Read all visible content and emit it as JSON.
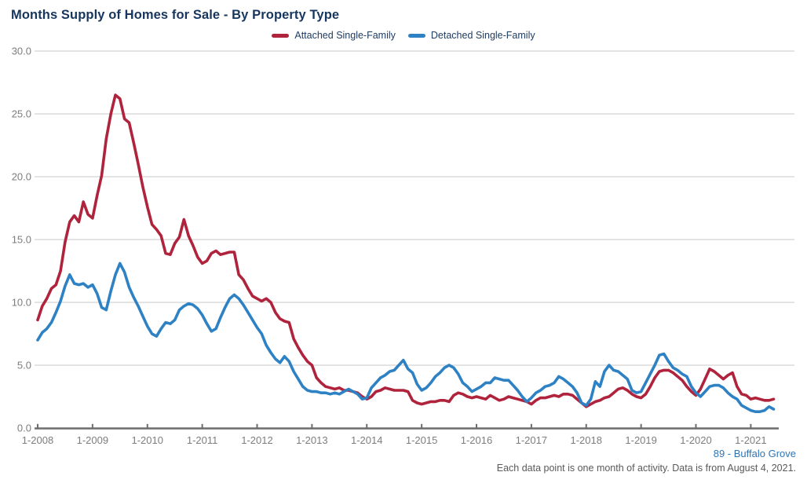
{
  "title": "Months Supply of Homes for Sale - By Property Type",
  "footer": {
    "report_label": "89 - Buffalo Grove",
    "note": "Each data point is one month of activity. Data is from August 4, 2021."
  },
  "colors": {
    "title_text": "#17365d",
    "legend_text": "#1f3c61",
    "axis_label": "#7d7d7d",
    "gridline": "#c9c9c9",
    "axis_line": "#6d6d6d",
    "attached_red": "#b0233c",
    "detached_blue": "#2e82c4",
    "footer_link_blue": "#2e75b6",
    "footer_note_gray": "#595959"
  },
  "chart_data": {
    "type": "line",
    "title": "Months Supply of Homes for Sale - By Property Type",
    "x_frequency": "monthly",
    "x_start": "1-2008",
    "x_end": "6-2021",
    "x_tick_labels": [
      "1-2008",
      "1-2009",
      "1-2010",
      "1-2011",
      "1-2012",
      "1-2013",
      "1-2014",
      "1-2015",
      "1-2016",
      "1-2017",
      "1-2018",
      "1-2019",
      "1-2020",
      "1-2021"
    ],
    "y_ticks": [
      0,
      5,
      10,
      15,
      20,
      25,
      30
    ],
    "y_tick_labels": [
      "0.0",
      "5.0",
      "10.0",
      "15.0",
      "20.0",
      "25.0",
      "30.0"
    ],
    "ylim": [
      0,
      30
    ],
    "grid": "horizontal",
    "legend_position": "top-center",
    "series": [
      {
        "name": "Attached Single-Family",
        "color": "#b0233c",
        "values": [
          8.6,
          9.7,
          10.3,
          11.1,
          11.4,
          12.5,
          14.8,
          16.4,
          16.9,
          16.4,
          18.0,
          17.0,
          16.7,
          18.5,
          20.1,
          23.0,
          25.0,
          26.5,
          26.2,
          24.6,
          24.3,
          22.7,
          21.0,
          19.2,
          17.6,
          16.2,
          15.8,
          15.3,
          13.9,
          13.8,
          14.7,
          15.2,
          16.6,
          15.3,
          14.5,
          13.6,
          13.1,
          13.3,
          13.9,
          14.1,
          13.8,
          13.9,
          14.0,
          14.0,
          12.2,
          11.8,
          11.1,
          10.5,
          10.3,
          10.1,
          10.3,
          10.0,
          9.2,
          8.7,
          8.5,
          8.4,
          7.1,
          6.4,
          5.8,
          5.3,
          5.0,
          4.0,
          3.6,
          3.3,
          3.2,
          3.1,
          3.2,
          3.0,
          3.0,
          2.9,
          2.8,
          2.5,
          2.3,
          2.5,
          2.9,
          3.0,
          3.2,
          3.1,
          3.0,
          3.0,
          3.0,
          2.9,
          2.2,
          2.0,
          1.9,
          2.0,
          2.1,
          2.1,
          2.2,
          2.2,
          2.1,
          2.6,
          2.8,
          2.7,
          2.5,
          2.4,
          2.5,
          2.4,
          2.3,
          2.6,
          2.4,
          2.2,
          2.3,
          2.5,
          2.4,
          2.3,
          2.2,
          2.1,
          1.9,
          2.2,
          2.4,
          2.4,
          2.5,
          2.6,
          2.5,
          2.7,
          2.7,
          2.6,
          2.3,
          2.0,
          1.7,
          1.9,
          2.1,
          2.2,
          2.4,
          2.5,
          2.8,
          3.1,
          3.2,
          3.0,
          2.7,
          2.5,
          2.4,
          2.7,
          3.3,
          4.0,
          4.5,
          4.6,
          4.6,
          4.4,
          4.1,
          3.8,
          3.3,
          2.9,
          2.6,
          3.1,
          3.9,
          4.7,
          4.5,
          4.2,
          3.9,
          4.2,
          4.4,
          3.3,
          2.7,
          2.6,
          2.3,
          2.4,
          2.3,
          2.2,
          2.2,
          2.3
        ]
      },
      {
        "name": "Detached Single-Family",
        "color": "#2e82c4",
        "values": [
          7.0,
          7.6,
          7.9,
          8.4,
          9.2,
          10.1,
          11.3,
          12.2,
          11.5,
          11.4,
          11.5,
          11.2,
          11.4,
          10.7,
          9.6,
          9.4,
          10.9,
          12.2,
          13.1,
          12.4,
          11.2,
          10.4,
          9.7,
          8.9,
          8.1,
          7.5,
          7.3,
          7.9,
          8.4,
          8.3,
          8.6,
          9.4,
          9.7,
          9.9,
          9.8,
          9.5,
          9.0,
          8.3,
          7.7,
          7.9,
          8.8,
          9.6,
          10.3,
          10.6,
          10.3,
          9.8,
          9.2,
          8.6,
          8.0,
          7.5,
          6.6,
          6.0,
          5.5,
          5.2,
          5.7,
          5.3,
          4.5,
          3.9,
          3.3,
          3.0,
          2.9,
          2.9,
          2.8,
          2.8,
          2.7,
          2.8,
          2.7,
          2.9,
          3.1,
          2.9,
          2.7,
          2.3,
          2.4,
          3.2,
          3.6,
          4.0,
          4.2,
          4.5,
          4.6,
          5.0,
          5.4,
          4.7,
          4.4,
          3.5,
          3.0,
          3.2,
          3.6,
          4.1,
          4.4,
          4.8,
          5.0,
          4.8,
          4.3,
          3.6,
          3.3,
          2.9,
          3.1,
          3.3,
          3.6,
          3.6,
          4.0,
          3.9,
          3.8,
          3.8,
          3.4,
          3.0,
          2.5,
          2.1,
          2.4,
          2.8,
          3.0,
          3.3,
          3.4,
          3.6,
          4.1,
          3.9,
          3.6,
          3.3,
          2.8,
          2.0,
          1.8,
          2.3,
          3.7,
          3.3,
          4.5,
          5.0,
          4.6,
          4.5,
          4.2,
          3.9,
          3.0,
          2.8,
          2.9,
          3.6,
          4.3,
          5.0,
          5.8,
          5.9,
          5.3,
          4.8,
          4.6,
          4.3,
          4.1,
          3.3,
          2.8,
          2.5,
          2.9,
          3.3,
          3.4,
          3.4,
          3.2,
          2.8,
          2.5,
          2.3,
          1.8,
          1.6,
          1.4,
          1.3,
          1.3,
          1.4,
          1.7,
          1.5
        ]
      }
    ]
  }
}
